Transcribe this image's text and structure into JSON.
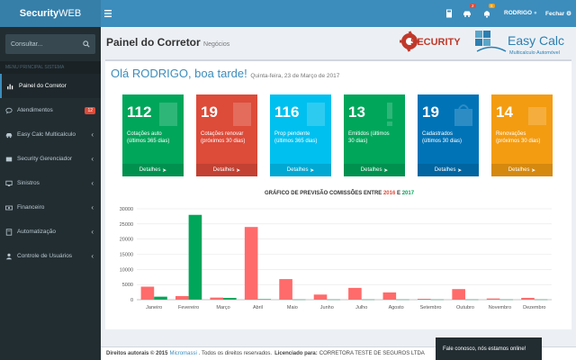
{
  "app": {
    "name_bold": "Security",
    "name_rest": "WEB"
  },
  "sidebar": {
    "search_placeholder": "Consultar...",
    "section_header": "MENU PRINCIPAL SISTEMA",
    "items": [
      {
        "label": "Painel do Corretor",
        "icon": "dashboard-icon"
      },
      {
        "label": "Atendimentos",
        "icon": "chat-icon",
        "badge": "12"
      },
      {
        "label": "Easy Calc Multicalculo",
        "icon": "car-icon"
      },
      {
        "label": "Security Gerenciador",
        "icon": "folder-icon"
      },
      {
        "label": "Sinistros",
        "icon": "desktop-icon"
      },
      {
        "label": "Financeiro",
        "icon": "money-icon"
      },
      {
        "label": "Automatização",
        "icon": "book-icon"
      },
      {
        "label": "Controle de Usuários",
        "icon": "users-icon"
      }
    ]
  },
  "topbar": {
    "car_badge": "2",
    "bell_badge": "8",
    "user": "RODRIGO",
    "logout": "Fechar"
  },
  "header": {
    "title": "Painel do Corretor",
    "subtitle": "Negócios",
    "brand1": "SECURITY",
    "brand2": "Easy Calc",
    "brand2_sub": "Multicalculo Automóvel"
  },
  "greeting": {
    "text": "Olá RODRIGO, boa tarde!",
    "date": "Quinta-feira, 23 de Março de 2017"
  },
  "tiles": [
    {
      "value": "112",
      "line1": "Cotações auto",
      "line2": "(últimos 365 dias)",
      "footer": "Detalhes",
      "color": "#00a65a"
    },
    {
      "value": "19",
      "line1": "Cotações renovar",
      "line2": "(próximos 30 dias)",
      "footer": "Detalhes",
      "color": "#dd4b39"
    },
    {
      "value": "116",
      "line1": "Prop pendente",
      "line2": "(últimos 365 dias)",
      "footer": "Detalhes",
      "color": "#00c0ef"
    },
    {
      "value": "13",
      "line1": "Emitidos (últimos",
      "line2": "30 dias)",
      "footer": "Detalhes",
      "color": "#00a65a"
    },
    {
      "value": "19",
      "line1": "Cadastrados",
      "line2": "(últimos 30 dias)",
      "footer": "Detalhes",
      "color": "#0073b7"
    },
    {
      "value": "14",
      "line1": "Renovações",
      "line2": "(próximos 30 dias)",
      "footer": "Detalhes",
      "color": "#f39c12"
    }
  ],
  "chart_data": {
    "type": "bar",
    "title_prefix": "GRÁFICO DE PREVISÃO COMISSÕES ENTRE",
    "title_mid": "E",
    "categories": [
      "Janeiro",
      "Fevereiro",
      "Março",
      "Abril",
      "Maio",
      "Junho",
      "Julho",
      "Agosto",
      "Setembro",
      "Outubro",
      "Novembro",
      "Dezembro"
    ],
    "series": [
      {
        "name": "2016",
        "color": "#ff6b6b",
        "values": [
          4300,
          1200,
          700,
          24000,
          6800,
          1700,
          3900,
          2400,
          300,
          3500,
          400,
          600
        ]
      },
      {
        "name": "2017",
        "color": "#00a65a",
        "values": [
          1000,
          28000,
          600,
          200,
          100,
          100,
          100,
          100,
          100,
          100,
          100,
          100
        ]
      }
    ],
    "ylim": [
      0,
      30000
    ],
    "yticks": [
      0,
      5000,
      10000,
      15000,
      20000,
      25000,
      30000
    ]
  },
  "footer": {
    "copyright": "Direitos autorais © 2015",
    "company": "Micromassi",
    "rights": ". Todos os direitos reservados.",
    "licensed_label": "Licenciado para:",
    "licensed_to": "CORRETORA TESTE DE SEGUROS LTDA"
  },
  "chat": {
    "label": "Fale conosco, nós estamos online!"
  }
}
